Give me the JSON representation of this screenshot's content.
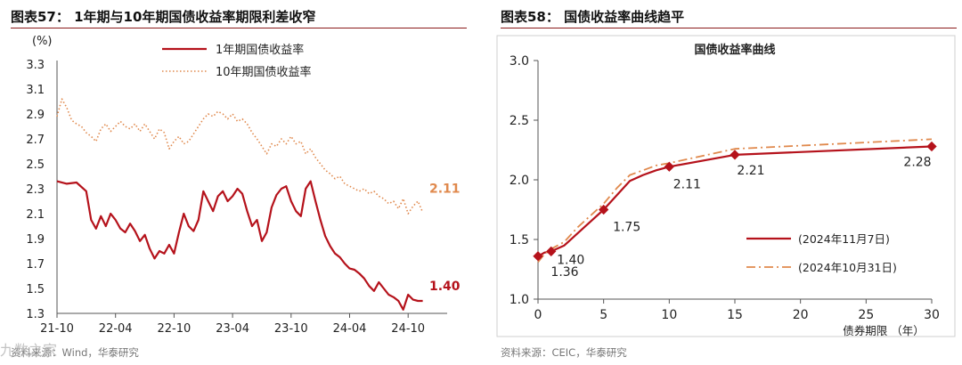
{
  "left_panel": {
    "title": "图表57： 1年期与10年期国债收益率期限利差收窄",
    "source": "资料来源：Wind，华泰研究",
    "watermark": "九数之家"
  },
  "right_panel": {
    "title": "图表58： 国债收益率曲线趋平",
    "source": "资料来源：CEIC，华泰研究"
  },
  "colors": {
    "accent": "#b5121b",
    "orange": "#e0894d",
    "title_rule": "#8b1a1a",
    "axis": "#555555"
  },
  "chart_data": [
    {
      "type": "line",
      "title": "",
      "unit_label": "(%)",
      "xlabel": "",
      "ylabel": "(%)",
      "ylim": [
        1.3,
        3.3
      ],
      "yticks": [
        "1.3",
        "1.5",
        "1.7",
        "1.9",
        "2.1",
        "2.3",
        "2.5",
        "2.7",
        "2.9",
        "3.1",
        "3.3"
      ],
      "xlim": [
        0,
        40
      ],
      "xticks": [
        {
          "label": "21-10",
          "value": 0
        },
        {
          "label": "22-04",
          "value": 6
        },
        {
          "label": "22-10",
          "value": 12
        },
        {
          "label": "23-04",
          "value": 18
        },
        {
          "label": "23-10",
          "value": 24
        },
        {
          "label": "24-04",
          "value": 30
        },
        {
          "label": "24-10",
          "value": 36
        }
      ],
      "legend": [
        "1年期国债收益率",
        "10年期国债收益率"
      ],
      "series": [
        {
          "name": "1年期国债收益率",
          "style": "solid",
          "end_label": "1.40",
          "x": [
            0,
            1,
            2,
            3,
            3.5,
            4,
            4.5,
            5,
            5.5,
            6,
            6.5,
            7,
            7.5,
            8,
            8.5,
            9,
            9.5,
            10,
            10.5,
            11,
            11.5,
            12,
            12.5,
            13,
            13.5,
            14,
            14.5,
            15,
            15.5,
            16,
            16.5,
            17,
            17.5,
            18,
            18.5,
            19,
            19.5,
            20,
            20.5,
            21,
            21.5,
            22,
            22.5,
            23,
            23.5,
            24,
            24.5,
            25,
            25.5,
            26,
            26.5,
            27,
            27.5,
            28,
            28.5,
            29,
            29.5,
            30,
            30.5,
            31,
            31.5,
            32,
            32.5,
            33,
            33.5,
            34,
            34.5,
            35,
            35.5,
            36,
            36.5,
            37,
            37.5
          ],
          "values": [
            2.36,
            2.34,
            2.35,
            2.28,
            2.05,
            1.98,
            2.08,
            2.0,
            2.1,
            2.05,
            1.98,
            1.95,
            2.02,
            1.96,
            1.88,
            1.93,
            1.82,
            1.74,
            1.8,
            1.78,
            1.85,
            1.78,
            1.95,
            2.1,
            2.0,
            1.96,
            2.05,
            2.28,
            2.2,
            2.12,
            2.24,
            2.28,
            2.2,
            2.24,
            2.3,
            2.26,
            2.12,
            2.0,
            2.05,
            1.88,
            1.95,
            2.15,
            2.25,
            2.3,
            2.32,
            2.2,
            2.12,
            2.08,
            2.3,
            2.36,
            2.2,
            2.05,
            1.92,
            1.84,
            1.78,
            1.75,
            1.7,
            1.66,
            1.65,
            1.62,
            1.58,
            1.52,
            1.48,
            1.55,
            1.5,
            1.45,
            1.43,
            1.4,
            1.33,
            1.45,
            1.41,
            1.4,
            1.4
          ]
        },
        {
          "name": "10年期国债收益率",
          "style": "dotted",
          "end_label": "2.11",
          "x": [
            0,
            0.5,
            1,
            1.5,
            2,
            2.5,
            3,
            3.5,
            4,
            4.5,
            5,
            5.5,
            6,
            6.5,
            7,
            7.5,
            8,
            8.5,
            9,
            9.5,
            10,
            10.5,
            11,
            11.5,
            12,
            12.5,
            13,
            13.5,
            14,
            14.5,
            15,
            15.5,
            16,
            16.5,
            17,
            17.5,
            18,
            18.5,
            19,
            19.5,
            20,
            20.5,
            21,
            21.5,
            22,
            22.5,
            23,
            23.5,
            24,
            24.5,
            25,
            25.5,
            26,
            26.5,
            27,
            27.5,
            28,
            28.5,
            29,
            29.5,
            30,
            30.5,
            31,
            31.5,
            32,
            32.5,
            33,
            33.5,
            34,
            34.5,
            35,
            35.5,
            36,
            36.5,
            37,
            37.5
          ],
          "values": [
            2.88,
            3.02,
            2.95,
            2.85,
            2.82,
            2.8,
            2.75,
            2.72,
            2.68,
            2.78,
            2.82,
            2.76,
            2.8,
            2.84,
            2.8,
            2.78,
            2.82,
            2.76,
            2.82,
            2.76,
            2.7,
            2.78,
            2.75,
            2.62,
            2.68,
            2.72,
            2.66,
            2.68,
            2.74,
            2.8,
            2.86,
            2.9,
            2.88,
            2.92,
            2.9,
            2.86,
            2.9,
            2.84,
            2.86,
            2.82,
            2.75,
            2.7,
            2.64,
            2.58,
            2.66,
            2.64,
            2.7,
            2.66,
            2.72,
            2.66,
            2.68,
            2.58,
            2.62,
            2.55,
            2.5,
            2.45,
            2.42,
            2.38,
            2.4,
            2.34,
            2.32,
            2.3,
            2.28,
            2.3,
            2.26,
            2.28,
            2.24,
            2.22,
            2.18,
            2.2,
            2.14,
            2.22,
            2.1,
            2.16,
            2.2,
            2.11
          ]
        }
      ]
    },
    {
      "type": "line",
      "title": "国债收益率曲线",
      "xlabel": "债券期限 （年）",
      "ylabel": "",
      "xlim": [
        0,
        30
      ],
      "ylim": [
        1.0,
        3.0
      ],
      "xticks": [
        "0",
        "5",
        "10",
        "15",
        "20",
        "25",
        "30"
      ],
      "yticks": [
        "1.0",
        "1.5",
        "2.0",
        "2.5",
        "3.0"
      ],
      "legend": [
        "(2024年11月7日)",
        "(2024年10月31日)"
      ],
      "series": [
        {
          "name": "(2024年11月7日)",
          "style": "solid",
          "x": [
            0,
            0.5,
            1,
            2,
            3,
            4,
            5,
            6,
            7,
            8,
            9,
            10,
            15,
            30
          ],
          "values": [
            1.36,
            1.39,
            1.4,
            1.45,
            1.55,
            1.65,
            1.75,
            1.87,
            1.99,
            2.04,
            2.08,
            2.11,
            2.21,
            2.28
          ],
          "markers": [
            {
              "x": 0,
              "y": 1.36,
              "label": "1.36"
            },
            {
              "x": 1,
              "y": 1.4,
              "label": "1.40"
            },
            {
              "x": 5,
              "y": 1.75,
              "label": "1.75"
            },
            {
              "x": 10,
              "y": 2.11,
              "label": "2.11"
            },
            {
              "x": 15,
              "y": 2.21,
              "label": "2.21"
            },
            {
              "x": 30,
              "y": 2.28,
              "label": "2.28"
            }
          ]
        },
        {
          "name": "(2024年10月31日)",
          "style": "dashdot",
          "x": [
            0,
            0.5,
            1,
            2,
            3,
            4,
            5,
            6,
            7,
            8,
            9,
            10,
            15,
            30
          ],
          "values": [
            1.31,
            1.38,
            1.42,
            1.48,
            1.6,
            1.7,
            1.8,
            1.93,
            2.04,
            2.08,
            2.12,
            2.14,
            2.26,
            2.34
          ]
        }
      ]
    }
  ]
}
